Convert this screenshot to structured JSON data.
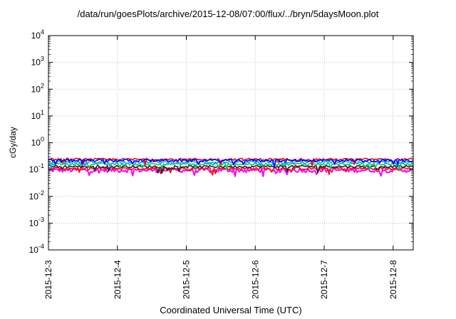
{
  "chart_data": {
    "type": "line",
    "title": "/data/run/goesPlots/archive/2015-12-08/07:00/flux/../bryn/5daysMoon.plot",
    "xlabel": "Coordinated Universal Time (UTC)",
    "ylabel": "cGy/day",
    "xlim": [
      "2015-12-03",
      "2015-12-08T07:00"
    ],
    "x_ticks": [
      "2015-12-3",
      "2015-12-4",
      "2015-12-5",
      "2015-12-6",
      "2015-12-7",
      "2015-12-8"
    ],
    "ylim": [
      0.0001,
      10000
    ],
    "yscale": "log",
    "y_ticks": [
      {
        "base": "10",
        "exp": "4"
      },
      {
        "base": "10",
        "exp": "3"
      },
      {
        "base": "10",
        "exp": "2"
      },
      {
        "base": "10",
        "exp": "1"
      },
      {
        "base": "10",
        "exp": "0"
      },
      {
        "base": "10",
        "exp": "-1"
      },
      {
        "base": "10",
        "exp": "-2"
      },
      {
        "base": "10",
        "exp": "-3"
      },
      {
        "base": "10",
        "exp": "-4"
      }
    ],
    "grid": true,
    "series": [
      {
        "color": "#ff00ff",
        "level": 0.095,
        "noise": 0.18
      },
      {
        "color": "#ff0000",
        "level": 0.11,
        "noise": 0.12
      },
      {
        "color": "#222222",
        "level": 0.13,
        "noise": 0.1
      },
      {
        "color": "#00cc66",
        "level": 0.16,
        "noise": 0.1
      },
      {
        "color": "#00aaff",
        "level": 0.19,
        "noise": 0.12
      },
      {
        "color": "#ff0000",
        "level": 0.24,
        "noise": 0.1
      },
      {
        "color": "#0000ff",
        "level": 0.22,
        "noise": 0.12
      }
    ]
  }
}
